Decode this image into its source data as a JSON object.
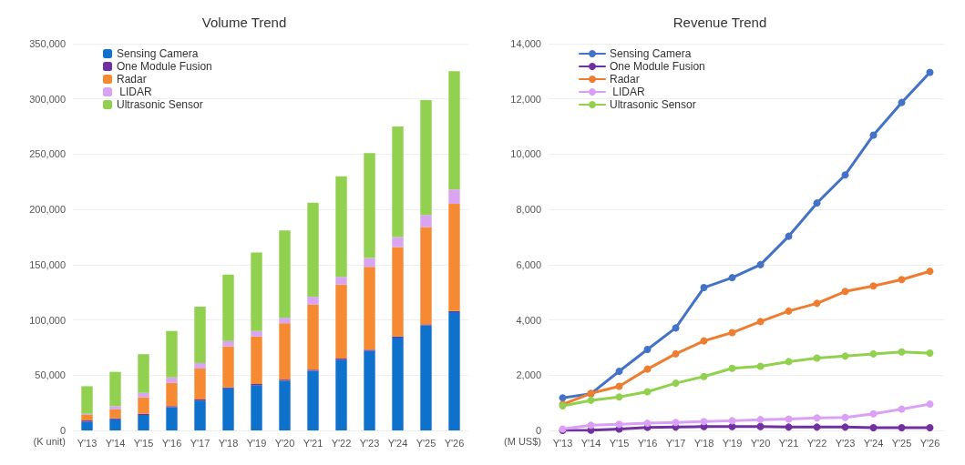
{
  "chart_data": [
    {
      "type": "bar",
      "title": "Volume Trend",
      "ylabel": "(K unit)",
      "stacked": true,
      "categories": [
        "Y'13",
        "Y'14",
        "Y'15",
        "Y'16",
        "Y'17",
        "Y'18",
        "Y'19",
        "Y'20",
        "Y'21",
        "Y'22",
        "Y'23",
        "Y'24",
        "Y'25",
        "Y'26"
      ],
      "series": [
        {
          "name": "Sensing Camera",
          "color": "#0e72cc",
          "values": [
            8000,
            10000,
            14000,
            21000,
            27000,
            38000,
            41000,
            45000,
            54000,
            64000,
            72000,
            84000,
            95000,
            107000
          ]
        },
        {
          "name": "One Module Fusion",
          "color": "#7030a0",
          "values": [
            1000,
            1000,
            1000,
            1000,
            1000,
            1000,
            1000,
            1000,
            1000,
            1000,
            1000,
            1000,
            1000,
            1000
          ]
        },
        {
          "name": "Radar",
          "color": "#f58a32",
          "values": [
            5000,
            8000,
            15000,
            21000,
            28000,
            37000,
            43000,
            51000,
            59000,
            67000,
            75000,
            81000,
            88000,
            97000
          ]
        },
        {
          "name": " LIDAR",
          "color": "#d9a4f0",
          "values": [
            1000,
            3000,
            4000,
            5000,
            5000,
            5000,
            5000,
            5000,
            7000,
            7000,
            8000,
            9000,
            11000,
            13000
          ]
        },
        {
          "name": "Ultrasonic Sensor",
          "color": "#92d050",
          "values": [
            25000,
            31000,
            35000,
            42000,
            51000,
            60000,
            71000,
            79000,
            85000,
            91000,
            95000,
            100000,
            104000,
            107000
          ]
        }
      ],
      "ylim": [
        0,
        350000
      ],
      "yticks": [
        0,
        {
          "value": 50000,
          "label": "50,000"
        },
        {
          "value": 100000,
          "label": "100,000"
        },
        {
          "value": 150000,
          "label": "150,000"
        },
        {
          "value": 200000,
          "label": "200,000"
        },
        {
          "value": 250000,
          "label": "250,000"
        },
        {
          "value": 300000,
          "label": "300,000"
        },
        {
          "value": 350000,
          "label": "350,000"
        }
      ],
      "grid": "y",
      "legend": "top left"
    },
    {
      "type": "line",
      "title": "Revenue Trend",
      "ylabel": "(M US$)",
      "marker": "circle",
      "categories": [
        "Y'13",
        "Y'14",
        "Y'15",
        "Y'16",
        "Y'17",
        "Y'18",
        "Y'19",
        "Y'20",
        "Y'21",
        "Y'22",
        "Y'23",
        "Y'24",
        "Y'25",
        "Y'26"
      ],
      "series": [
        {
          "name": "Sensing Camera",
          "color": "#4472c4",
          "values": [
            1180,
            1330,
            2140,
            2930,
            3710,
            5170,
            5530,
            6000,
            7030,
            8230,
            9250,
            10690,
            11870,
            12960
          ]
        },
        {
          "name": "One Module Fusion",
          "color": "#7030a0",
          "values": [
            0,
            10,
            50,
            110,
            120,
            140,
            140,
            140,
            120,
            120,
            120,
            100,
            100,
            100
          ]
        },
        {
          "name": "Radar",
          "color": "#ed7d31",
          "values": [
            940,
            1340,
            1600,
            2220,
            2770,
            3240,
            3540,
            3940,
            4320,
            4600,
            5030,
            5230,
            5460,
            5760
          ]
        },
        {
          "name": " LIDAR",
          "color": "#d9a0f5",
          "values": [
            50,
            190,
            220,
            260,
            290,
            320,
            350,
            390,
            410,
            450,
            470,
            600,
            770,
            950
          ]
        },
        {
          "name": "Ultrasonic Sensor",
          "color": "#92d050",
          "values": [
            890,
            1090,
            1210,
            1400,
            1710,
            1950,
            2250,
            2320,
            2490,
            2620,
            2690,
            2770,
            2840,
            2800
          ]
        }
      ],
      "ylim": [
        0,
        14000
      ],
      "yticks": [
        0,
        {
          "value": 2000,
          "label": "2,000"
        },
        {
          "value": 4000,
          "label": "4,000"
        },
        {
          "value": 6000,
          "label": "6,000"
        },
        {
          "value": 8000,
          "label": "8,000"
        },
        {
          "value": 10000,
          "label": "10,000"
        },
        {
          "value": 12000,
          "label": "12,000"
        },
        {
          "value": 14000,
          "label": "14,000"
        }
      ],
      "grid": "y",
      "legend": "top left"
    }
  ]
}
